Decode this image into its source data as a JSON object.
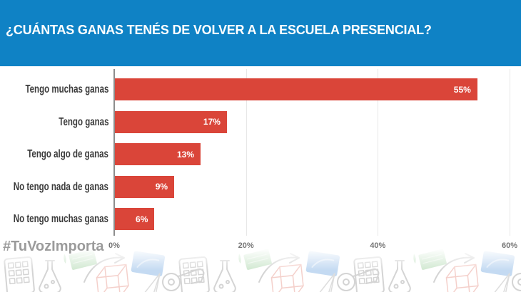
{
  "header": {
    "title": "¿CUÁNTAS GANAS TENÉS DE VOLVER A LA ESCUELA PRESENCIAL?",
    "background_color": "#0f82c5",
    "text_color": "#ffffff"
  },
  "footer": {
    "hashtag": "#TuVozImporta"
  },
  "chart_data": {
    "type": "bar",
    "orientation": "horizontal",
    "title": "¿Cuántas ganas tenés de volver a la escuela presencial?",
    "categories": [
      "Tengo muchas ganas",
      "Tengo ganas",
      "Tengo algo de ganas",
      "No tengo nada de ganas",
      "No tengo muchas ganas"
    ],
    "values": [
      55,
      17,
      13,
      9,
      6
    ],
    "value_labels": [
      "55%",
      "17%",
      "13%",
      "9%",
      "6%"
    ],
    "value_label_position": "inside-end",
    "x_ticks": [
      {
        "value": 0,
        "label": "0%"
      },
      {
        "value": 20,
        "label": "20%"
      },
      {
        "value": 40,
        "label": "40%"
      },
      {
        "value": 60,
        "label": "60%"
      }
    ],
    "xlim": [
      0,
      62
    ],
    "bar_color": "#da4539",
    "grid": true,
    "legend": false
  },
  "decor": {
    "strip_theme": "school-doodle-pattern",
    "icons": [
      "calculator",
      "flask",
      "eraser",
      "arrow",
      "cube",
      "book",
      "whistle",
      "paper-plane"
    ]
  }
}
